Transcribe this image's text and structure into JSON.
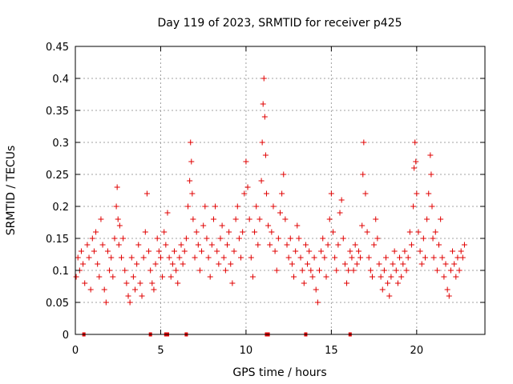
{
  "chart_data": {
    "type": "scatter",
    "title": "Day 119 of 2023, SRMTID for receiver p425",
    "xlabel": "GPS time / hours",
    "ylabel": "SRMTID / TECUs",
    "xlim": [
      0,
      24
    ],
    "ylim": [
      0,
      0.45
    ],
    "xticks": [
      0,
      5,
      10,
      15,
      20
    ],
    "xtick_labels": [
      "0",
      "5",
      "10",
      "15",
      "20"
    ],
    "yticks": [
      0,
      0.05,
      0.1,
      0.15,
      0.2,
      0.25,
      0.3,
      0.35,
      0.4,
      0.45
    ],
    "ytick_labels": [
      "0",
      "0.05",
      "0.1",
      "0.15",
      "0.2",
      "0.25",
      "0.3",
      "0.35",
      "0.4",
      "0.45"
    ],
    "grid": true,
    "marker": "+",
    "color": "#e00000",
    "baseline_markers_x": [
      0.5,
      4.4,
      5.3,
      5.4,
      6.5,
      11.2,
      11.3,
      13.5,
      16.1
    ],
    "series": [
      {
        "name": "SRMTID",
        "x": [
          0.05,
          0.15,
          0.25,
          0.35,
          0.45,
          0.55,
          0.7,
          0.8,
          0.9,
          1.0,
          1.1,
          1.2,
          1.3,
          1.4,
          1.5,
          1.6,
          1.7,
          1.8,
          1.9,
          2.0,
          2.1,
          2.2,
          2.3,
          2.4,
          2.45,
          2.5,
          2.55,
          2.6,
          2.7,
          2.8,
          2.9,
          3.0,
          3.1,
          3.2,
          3.3,
          3.4,
          3.5,
          3.6,
          3.7,
          3.8,
          3.9,
          4.0,
          4.1,
          4.2,
          4.3,
          4.4,
          4.5,
          4.6,
          4.7,
          4.8,
          4.9,
          5.0,
          5.1,
          5.2,
          5.3,
          5.4,
          5.5,
          5.6,
          5.7,
          5.8,
          5.9,
          6.0,
          6.1,
          6.2,
          6.3,
          6.4,
          6.5,
          6.6,
          6.7,
          6.75,
          6.8,
          6.85,
          6.9,
          7.0,
          7.1,
          7.2,
          7.3,
          7.4,
          7.5,
          7.6,
          7.7,
          7.8,
          7.9,
          8.0,
          8.1,
          8.2,
          8.3,
          8.4,
          8.5,
          8.6,
          8.7,
          8.8,
          8.9,
          9.0,
          9.1,
          9.2,
          9.3,
          9.4,
          9.5,
          9.6,
          9.7,
          9.8,
          9.9,
          10.0,
          10.1,
          10.2,
          10.3,
          10.4,
          10.5,
          10.6,
          10.7,
          10.8,
          10.9,
          10.95,
          11.0,
          11.05,
          11.1,
          11.15,
          11.2,
          11.3,
          11.4,
          11.5,
          11.6,
          11.7,
          11.8,
          11.9,
          12.0,
          12.1,
          12.2,
          12.3,
          12.4,
          12.5,
          12.6,
          12.7,
          12.8,
          12.9,
          13.0,
          13.1,
          13.2,
          13.3,
          13.4,
          13.5,
          13.6,
          13.7,
          13.8,
          13.9,
          14.0,
          14.1,
          14.2,
          14.3,
          14.4,
          14.5,
          14.6,
          14.7,
          14.8,
          14.9,
          15.0,
          15.1,
          15.2,
          15.3,
          15.4,
          15.5,
          15.6,
          15.7,
          15.8,
          15.9,
          16.0,
          16.1,
          16.2,
          16.3,
          16.4,
          16.5,
          16.6,
          16.7,
          16.8,
          16.85,
          16.9,
          17.0,
          17.1,
          17.2,
          17.3,
          17.4,
          17.5,
          17.6,
          17.7,
          17.8,
          17.9,
          18.0,
          18.1,
          18.2,
          18.3,
          18.4,
          18.5,
          18.6,
          18.7,
          18.8,
          18.9,
          19.0,
          19.1,
          19.2,
          19.3,
          19.4,
          19.5,
          19.6,
          19.7,
          19.8,
          19.85,
          19.9,
          19.95,
          20.0,
          20.1,
          20.2,
          20.3,
          20.4,
          20.5,
          20.6,
          20.7,
          20.8,
          20.85,
          20.9,
          20.95,
          21.0,
          21.1,
          21.2,
          21.3,
          21.4,
          21.5,
          21.6,
          21.7,
          21.8,
          21.9,
          22.0,
          22.1,
          22.2,
          22.3,
          22.4,
          22.5,
          22.6,
          22.7,
          22.8
        ],
        "y": [
          0.09,
          0.12,
          0.1,
          0.13,
          0.11,
          0.08,
          0.14,
          0.12,
          0.07,
          0.15,
          0.13,
          0.16,
          0.11,
          0.09,
          0.18,
          0.14,
          0.07,
          0.05,
          0.13,
          0.1,
          0.12,
          0.09,
          0.15,
          0.2,
          0.23,
          0.18,
          0.14,
          0.17,
          0.12,
          0.15,
          0.1,
          0.08,
          0.06,
          0.05,
          0.12,
          0.09,
          0.07,
          0.11,
          0.14,
          0.08,
          0.06,
          0.12,
          0.16,
          0.22,
          0.13,
          0.1,
          0.08,
          0.07,
          0.11,
          0.15,
          0.13,
          0.12,
          0.09,
          0.16,
          0.14,
          0.19,
          0.12,
          0.09,
          0.11,
          0.13,
          0.1,
          0.08,
          0.12,
          0.14,
          0.11,
          0.13,
          0.15,
          0.2,
          0.24,
          0.3,
          0.27,
          0.22,
          0.18,
          0.12,
          0.16,
          0.14,
          0.1,
          0.13,
          0.17,
          0.2,
          0.15,
          0.12,
          0.09,
          0.14,
          0.18,
          0.2,
          0.13,
          0.11,
          0.15,
          0.17,
          0.12,
          0.1,
          0.14,
          0.16,
          0.11,
          0.08,
          0.13,
          0.18,
          0.2,
          0.15,
          0.12,
          0.16,
          0.22,
          0.27,
          0.23,
          0.18,
          0.12,
          0.09,
          0.16,
          0.2,
          0.14,
          0.18,
          0.24,
          0.3,
          0.36,
          0.4,
          0.34,
          0.28,
          0.22,
          0.17,
          0.14,
          0.16,
          0.2,
          0.13,
          0.1,
          0.15,
          0.19,
          0.22,
          0.25,
          0.18,
          0.14,
          0.12,
          0.15,
          0.11,
          0.09,
          0.13,
          0.17,
          0.15,
          0.12,
          0.1,
          0.08,
          0.14,
          0.11,
          0.13,
          0.1,
          0.09,
          0.12,
          0.07,
          0.05,
          0.1,
          0.13,
          0.15,
          0.12,
          0.09,
          0.14,
          0.18,
          0.22,
          0.16,
          0.12,
          0.1,
          0.14,
          0.19,
          0.21,
          0.15,
          0.11,
          0.08,
          0.1,
          0.13,
          0.12,
          0.1,
          0.14,
          0.11,
          0.13,
          0.12,
          0.17,
          0.25,
          0.3,
          0.22,
          0.16,
          0.12,
          0.1,
          0.09,
          0.14,
          0.18,
          0.15,
          0.11,
          0.09,
          0.07,
          0.1,
          0.12,
          0.08,
          0.06,
          0.09,
          0.11,
          0.13,
          0.1,
          0.08,
          0.12,
          0.09,
          0.11,
          0.13,
          0.1,
          0.12,
          0.16,
          0.14,
          0.2,
          0.26,
          0.3,
          0.27,
          0.22,
          0.16,
          0.13,
          0.11,
          0.15,
          0.12,
          0.18,
          0.22,
          0.28,
          0.25,
          0.2,
          0.15,
          0.12,
          0.16,
          0.1,
          0.14,
          0.18,
          0.12,
          0.09,
          0.11,
          0.07,
          0.06,
          0.1,
          0.13,
          0.11,
          0.09,
          0.12,
          0.1,
          0.13,
          0.12,
          0.14
        ]
      }
    ]
  }
}
